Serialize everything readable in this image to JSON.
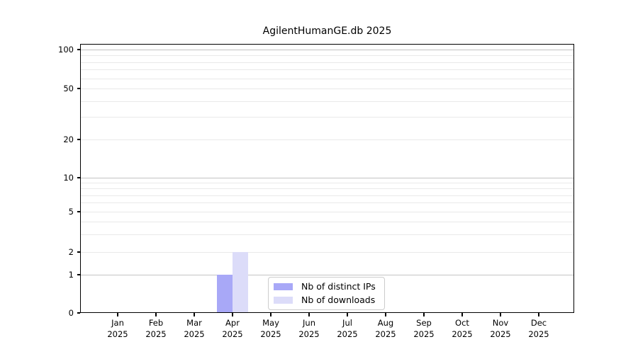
{
  "chart_data": {
    "type": "bar",
    "title": "AgilentHumanGE.db 2025",
    "x_categories": [
      {
        "month": "Jan",
        "year": "2025"
      },
      {
        "month": "Feb",
        "year": "2025"
      },
      {
        "month": "Mar",
        "year": "2025"
      },
      {
        "month": "Apr",
        "year": "2025"
      },
      {
        "month": "May",
        "year": "2025"
      },
      {
        "month": "Jun",
        "year": "2025"
      },
      {
        "month": "Jul",
        "year": "2025"
      },
      {
        "month": "Aug",
        "year": "2025"
      },
      {
        "month": "Sep",
        "year": "2025"
      },
      {
        "month": "Oct",
        "year": "2025"
      },
      {
        "month": "Nov",
        "year": "2025"
      },
      {
        "month": "Dec",
        "year": "2025"
      }
    ],
    "series": [
      {
        "name": "Nb of distinct IPs",
        "color": "#a8a8f7",
        "values": [
          0,
          0,
          0,
          1,
          0,
          0,
          0,
          0,
          0,
          0,
          0,
          0
        ]
      },
      {
        "name": "Nb of downloads",
        "color": "#dcdcf9",
        "values": [
          0,
          0,
          0,
          2,
          0,
          0,
          0,
          0,
          0,
          0,
          0,
          0
        ]
      }
    ],
    "y_axis": {
      "scale": "log-like",
      "range": [
        0,
        100
      ],
      "tick_labels": [
        0,
        1,
        2,
        5,
        10,
        20,
        50,
        100
      ],
      "decade_ticks": [
        1,
        10,
        100
      ],
      "minor_gridlines": [
        3,
        4,
        6,
        7,
        8,
        9,
        30,
        40,
        60,
        70,
        80,
        90
      ]
    },
    "grid": true,
    "legend": {
      "position": "inside-bottom-center"
    },
    "colors": {
      "background": "#ffffff",
      "axis": "#000000",
      "major_grid": "#c3c3c3",
      "minor_grid": "#e9e9e9",
      "legend_border": "#cccccc"
    }
  }
}
